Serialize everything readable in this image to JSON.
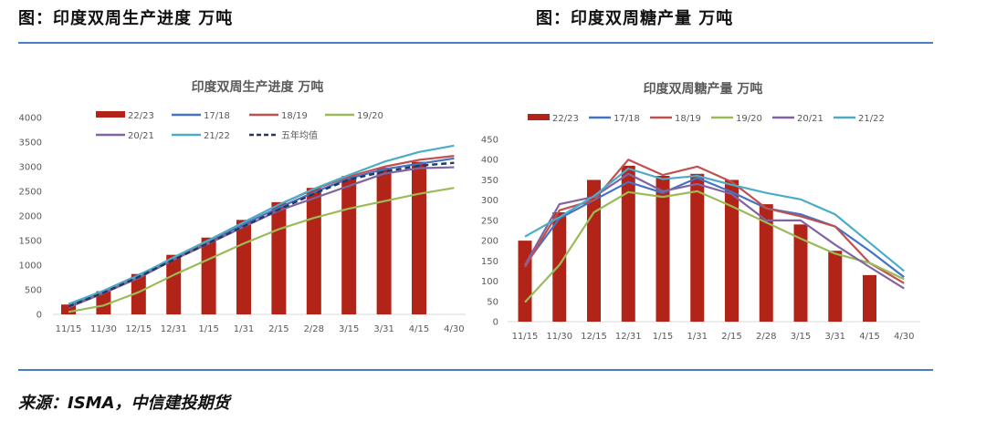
{
  "figures": [
    {
      "title": "图：印度双周生产进度 万吨"
    },
    {
      "title": "图：印度双周糖产量 万吨"
    }
  ],
  "source": "来源：ISMA，中信建投期货",
  "chart_data": [
    {
      "type": "bar",
      "title": "印度双周生产进度 万吨",
      "xlabel": "",
      "ylabel": "",
      "ylim": [
        0,
        4000
      ],
      "yticks": [
        0,
        500,
        1000,
        1500,
        2000,
        2500,
        3000,
        3500,
        4000
      ],
      "grid": false,
      "legend": "top",
      "categories": [
        "11/15",
        "11/30",
        "12/15",
        "12/31",
        "1/15",
        "1/31",
        "2/15",
        "2/28",
        "3/15",
        "3/31",
        "4/15",
        "4/30"
      ],
      "series": [
        {
          "name": "22/23",
          "kind": "bar",
          "color": "#b22418",
          "values": [
            200,
            470,
            820,
            1210,
            1560,
            1920,
            2280,
            2570,
            2810,
            2980,
            3100,
            null
          ]
        },
        {
          "name": "17/18",
          "kind": "line",
          "color": "#4472c4",
          "values": [
            170,
            480,
            800,
            1130,
            1480,
            1830,
            2170,
            2480,
            2760,
            2950,
            3060,
            3170
          ]
        },
        {
          "name": "18/19",
          "kind": "line",
          "color": "#c0504d",
          "values": [
            150,
            440,
            760,
            1120,
            1500,
            1870,
            2230,
            2540,
            2800,
            3000,
            3140,
            3220
          ]
        },
        {
          "name": "19/20",
          "kind": "line",
          "color": "#9bbb59",
          "values": [
            50,
            180,
            450,
            800,
            1120,
            1440,
            1730,
            1960,
            2150,
            2300,
            2450,
            2570
          ]
        },
        {
          "name": "20/21",
          "kind": "line",
          "color": "#8064a2",
          "values": [
            140,
            430,
            740,
            1110,
            1440,
            1780,
            2110,
            2360,
            2610,
            2860,
            2970,
            2990
          ]
        },
        {
          "name": "21/22",
          "kind": "line",
          "color": "#4bacc6",
          "values": [
            210,
            480,
            790,
            1160,
            1510,
            1870,
            2230,
            2550,
            2830,
            3100,
            3300,
            3430
          ]
        },
        {
          "name": "五年均值",
          "kind": "dash",
          "color": "#1f3864",
          "values": [
            160,
            440,
            760,
            1110,
            1450,
            1790,
            2130,
            2450,
            2740,
            2900,
            3020,
            3080
          ]
        }
      ]
    },
    {
      "type": "bar",
      "title": "印度双周糖产量 万吨",
      "xlabel": "",
      "ylabel": "",
      "ylim": [
        0,
        450
      ],
      "yticks": [
        0,
        50,
        100,
        150,
        200,
        250,
        300,
        350,
        400,
        450
      ],
      "grid": false,
      "legend": "top",
      "categories": [
        "11/15",
        "11/30",
        "12/15",
        "12/31",
        "1/15",
        "1/31",
        "2/15",
        "2/28",
        "3/15",
        "3/31",
        "4/15",
        "4/30"
      ],
      "series": [
        {
          "name": "22/23",
          "kind": "bar",
          "color": "#b22418",
          "values": [
            200,
            270,
            350,
            385,
            360,
            365,
            350,
            290,
            240,
            175,
            115,
            null
          ]
        },
        {
          "name": "17/18",
          "kind": "line",
          "color": "#4472c4",
          "values": [
            140,
            255,
            300,
            345,
            318,
            355,
            320,
            280,
            265,
            235,
            175,
            110
          ]
        },
        {
          "name": "18/19",
          "kind": "line",
          "color": "#c0504d",
          "values": [
            135,
            275,
            300,
            400,
            362,
            383,
            345,
            280,
            260,
            235,
            145,
            95
          ]
        },
        {
          "name": "19/20",
          "kind": "line",
          "color": "#9bbb59",
          "values": [
            48,
            140,
            270,
            320,
            308,
            322,
            285,
            245,
            205,
            168,
            145,
            105
          ]
        },
        {
          "name": "20/21",
          "kind": "line",
          "color": "#8064a2",
          "values": [
            140,
            290,
            308,
            365,
            322,
            340,
            315,
            250,
            250,
            190,
            135,
            82
          ]
        },
        {
          "name": "21/22",
          "kind": "line",
          "color": "#4bacc6",
          "values": [
            210,
            258,
            310,
            378,
            352,
            360,
            338,
            318,
            302,
            265,
            195,
            125
          ]
        }
      ]
    }
  ]
}
